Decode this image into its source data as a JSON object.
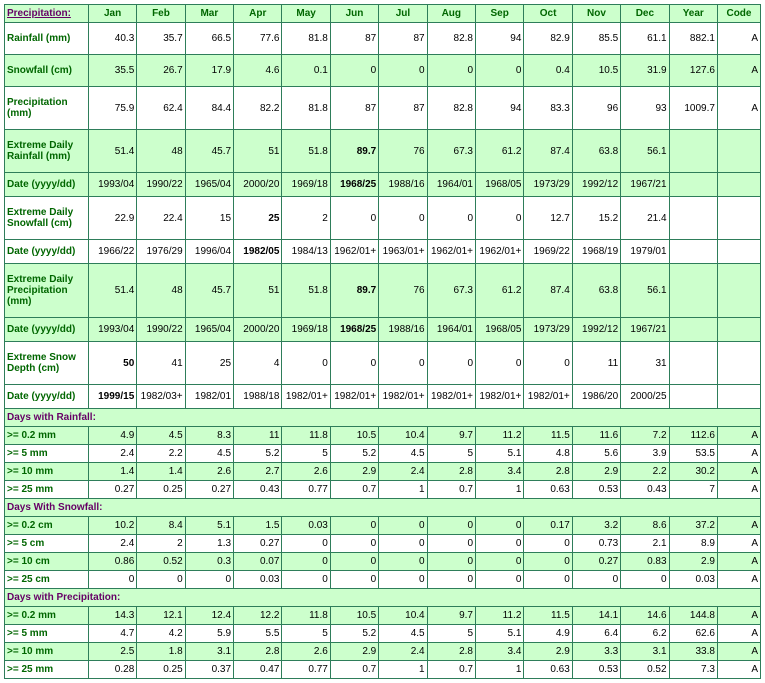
{
  "header": {
    "title": "Precipitation:",
    "months": [
      "Jan",
      "Feb",
      "Mar",
      "Apr",
      "May",
      "Jun",
      "Jul",
      "Aug",
      "Sep",
      "Oct",
      "Nov",
      "Dec",
      "Year",
      "Code"
    ]
  },
  "rows": [
    {
      "label": "Rainfall (mm)",
      "bg": "white",
      "tall": true,
      "vals": [
        "40.3",
        "35.7",
        "66.5",
        "77.6",
        "81.8",
        "87",
        "87",
        "82.8",
        "94",
        "82.9",
        "85.5",
        "61.1",
        "882.1",
        "A"
      ]
    },
    {
      "label": "Snowfall (cm)",
      "bg": "green",
      "tall": true,
      "vals": [
        "35.5",
        "26.7",
        "17.9",
        "4.6",
        "0.1",
        "0",
        "0",
        "0",
        "0",
        "0.4",
        "10.5",
        "31.9",
        "127.6",
        "A"
      ]
    },
    {
      "label": "Precipitation (mm)",
      "bg": "white",
      "tall": true,
      "vals": [
        "75.9",
        "62.4",
        "84.4",
        "82.2",
        "81.8",
        "87",
        "87",
        "82.8",
        "94",
        "83.3",
        "96",
        "93",
        "1009.7",
        "A"
      ]
    },
    {
      "label": "Extreme Daily Rainfall (mm)",
      "bg": "green",
      "tall": true,
      "vals": [
        "51.4",
        "48",
        "45.7",
        "51",
        "51.8",
        "89.7",
        "76",
        "67.3",
        "61.2",
        "87.4",
        "63.8",
        "56.1",
        "",
        ""
      ],
      "bold": [
        5
      ]
    },
    {
      "label": "Date (yyyy/dd)",
      "bg": "green",
      "med": true,
      "vals": [
        "1993/04",
        "1990/22",
        "1965/04",
        "2000/20",
        "1969/18",
        "1968/25",
        "1988/16",
        "1964/01",
        "1968/05",
        "1973/29",
        "1992/12",
        "1967/21",
        "",
        ""
      ],
      "bold": [
        5
      ]
    },
    {
      "label": "Extreme Daily Snowfall (cm)",
      "bg": "white",
      "tall": true,
      "vals": [
        "22.9",
        "22.4",
        "15",
        "25",
        "2",
        "0",
        "0",
        "0",
        "0",
        "12.7",
        "15.2",
        "21.4",
        "",
        ""
      ],
      "bold": [
        3
      ]
    },
    {
      "label": "Date (yyyy/dd)",
      "bg": "white",
      "med": true,
      "vals": [
        "1966/22",
        "1976/29",
        "1996/04",
        "1982/05",
        "1984/13",
        "1962/01+",
        "1963/01+",
        "1962/01+",
        "1962/01+",
        "1969/22",
        "1968/19",
        "1979/01",
        "",
        ""
      ],
      "bold": [
        3
      ]
    },
    {
      "label": "Extreme Daily Precipitation (mm)",
      "bg": "green",
      "tall": true,
      "vals": [
        "51.4",
        "48",
        "45.7",
        "51",
        "51.8",
        "89.7",
        "76",
        "67.3",
        "61.2",
        "87.4",
        "63.8",
        "56.1",
        "",
        ""
      ],
      "bold": [
        5
      ]
    },
    {
      "label": "Date (yyyy/dd)",
      "bg": "green",
      "med": true,
      "vals": [
        "1993/04",
        "1990/22",
        "1965/04",
        "2000/20",
        "1969/18",
        "1968/25",
        "1988/16",
        "1964/01",
        "1968/05",
        "1973/29",
        "1992/12",
        "1967/21",
        "",
        ""
      ],
      "bold": [
        5
      ]
    },
    {
      "label": "Extreme Snow Depth (cm)",
      "bg": "white",
      "tall": true,
      "vals": [
        "50",
        "41",
        "25",
        "4",
        "0",
        "0",
        "0",
        "0",
        "0",
        "0",
        "11",
        "31",
        "",
        ""
      ],
      "bold": [
        0
      ]
    },
    {
      "label": "Date (yyyy/dd)",
      "bg": "white",
      "med": true,
      "vals": [
        "1999/15",
        "1982/03+",
        "1982/01",
        "1988/18",
        "1982/01+",
        "1982/01+",
        "1982/01+",
        "1982/01+",
        "1982/01+",
        "1982/01+",
        "1986/20",
        "2000/25",
        "",
        ""
      ],
      "bold": [
        0
      ]
    }
  ],
  "sections": [
    {
      "title": "Days with Rainfall:",
      "rows": [
        {
          "label": ">= 0.2 mm",
          "vals": [
            "4.9",
            "4.5",
            "8.3",
            "11",
            "11.8",
            "10.5",
            "10.4",
            "9.7",
            "11.2",
            "11.5",
            "11.6",
            "7.2",
            "112.6",
            "A"
          ]
        },
        {
          "label": ">= 5 mm",
          "vals": [
            "2.4",
            "2.2",
            "4.5",
            "5.2",
            "5",
            "5.2",
            "4.5",
            "5",
            "5.1",
            "4.8",
            "5.6",
            "3.9",
            "53.5",
            "A"
          ]
        },
        {
          "label": ">= 10 mm",
          "vals": [
            "1.4",
            "1.4",
            "2.6",
            "2.7",
            "2.6",
            "2.9",
            "2.4",
            "2.8",
            "3.4",
            "2.8",
            "2.9",
            "2.2",
            "30.2",
            "A"
          ]
        },
        {
          "label": ">= 25 mm",
          "vals": [
            "0.27",
            "0.25",
            "0.27",
            "0.43",
            "0.77",
            "0.7",
            "1",
            "0.7",
            "1",
            "0.63",
            "0.53",
            "0.43",
            "7",
            "A"
          ]
        }
      ]
    },
    {
      "title": "Days With Snowfall:",
      "rows": [
        {
          "label": ">= 0.2 cm",
          "vals": [
            "10.2",
            "8.4",
            "5.1",
            "1.5",
            "0.03",
            "0",
            "0",
            "0",
            "0",
            "0.17",
            "3.2",
            "8.6",
            "37.2",
            "A"
          ]
        },
        {
          "label": ">= 5 cm",
          "vals": [
            "2.4",
            "2",
            "1.3",
            "0.27",
            "0",
            "0",
            "0",
            "0",
            "0",
            "0",
            "0.73",
            "2.1",
            "8.9",
            "A"
          ]
        },
        {
          "label": ">= 10 cm",
          "vals": [
            "0.86",
            "0.52",
            "0.3",
            "0.07",
            "0",
            "0",
            "0",
            "0",
            "0",
            "0",
            "0.27",
            "0.83",
            "2.9",
            "A"
          ]
        },
        {
          "label": ">= 25 cm",
          "vals": [
            "0",
            "0",
            "0",
            "0.03",
            "0",
            "0",
            "0",
            "0",
            "0",
            "0",
            "0",
            "0",
            "0.03",
            "A"
          ]
        }
      ]
    },
    {
      "title": "Days with Precipitation:",
      "rows": [
        {
          "label": ">= 0.2 mm",
          "vals": [
            "14.3",
            "12.1",
            "12.4",
            "12.2",
            "11.8",
            "10.5",
            "10.4",
            "9.7",
            "11.2",
            "11.5",
            "14.1",
            "14.6",
            "144.8",
            "A"
          ]
        },
        {
          "label": ">= 5 mm",
          "vals": [
            "4.7",
            "4.2",
            "5.9",
            "5.5",
            "5",
            "5.2",
            "4.5",
            "5",
            "5.1",
            "4.9",
            "6.4",
            "6.2",
            "62.6",
            "A"
          ]
        },
        {
          "label": ">= 10 mm",
          "vals": [
            "2.5",
            "1.8",
            "3.1",
            "2.8",
            "2.6",
            "2.9",
            "2.4",
            "2.8",
            "3.4",
            "2.9",
            "3.3",
            "3.1",
            "33.8",
            "A"
          ]
        },
        {
          "label": ">= 25 mm",
          "vals": [
            "0.28",
            "0.25",
            "0.37",
            "0.47",
            "0.77",
            "0.7",
            "1",
            "0.7",
            "1",
            "0.63",
            "0.53",
            "0.52",
            "7.3",
            "A"
          ]
        }
      ]
    }
  ]
}
